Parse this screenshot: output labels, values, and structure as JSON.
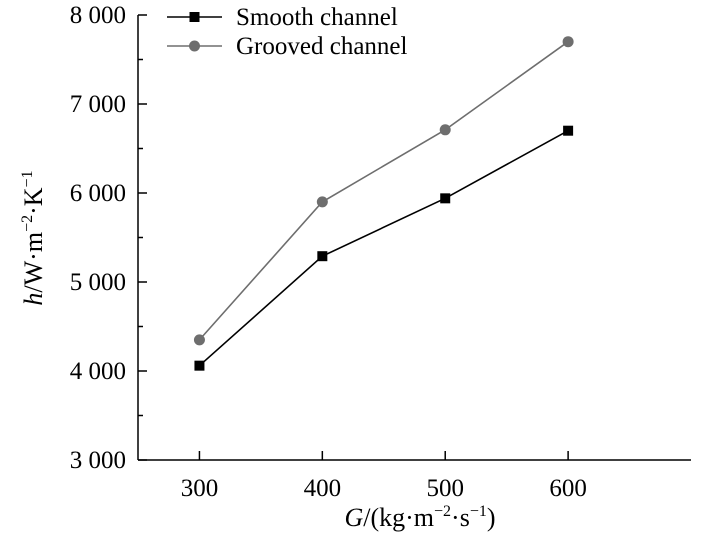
{
  "chart_data": {
    "type": "line",
    "title": "",
    "x_values": [
      300,
      400,
      500,
      600
    ],
    "x_tick_labels": [
      "300",
      "400",
      "500",
      "600"
    ],
    "xlim": [
      250,
      700
    ],
    "ylim": [
      3000,
      8000
    ],
    "y_ticks": [
      3000,
      4000,
      5000,
      6000,
      7000,
      8000
    ],
    "y_tick_labels": [
      "3 000",
      "4 000",
      "5 000",
      "6 000",
      "7 000",
      "8 000"
    ],
    "y_minor_ticks": [
      3500,
      4500,
      5500,
      6500,
      7500
    ],
    "xlabel": {
      "italic": "G",
      "rest": "/(kg·m",
      "sup1": "−2",
      "mid": "·s",
      "sup2": "−1",
      "end": ")"
    },
    "ylabel": {
      "italic": "h",
      "rest": "/W·m",
      "sup1": "−2",
      "mid": "·K",
      "sup2": "−1"
    },
    "legend_position": "top-left",
    "grid": false,
    "series": [
      {
        "name": "Smooth channel",
        "marker": "square",
        "color": "#000000",
        "values": [
          4060,
          5290,
          5940,
          6700
        ]
      },
      {
        "name": "Grooved channel",
        "marker": "circle",
        "color": "#6e6e6e",
        "values": [
          4350,
          5900,
          6710,
          7700
        ]
      }
    ]
  }
}
